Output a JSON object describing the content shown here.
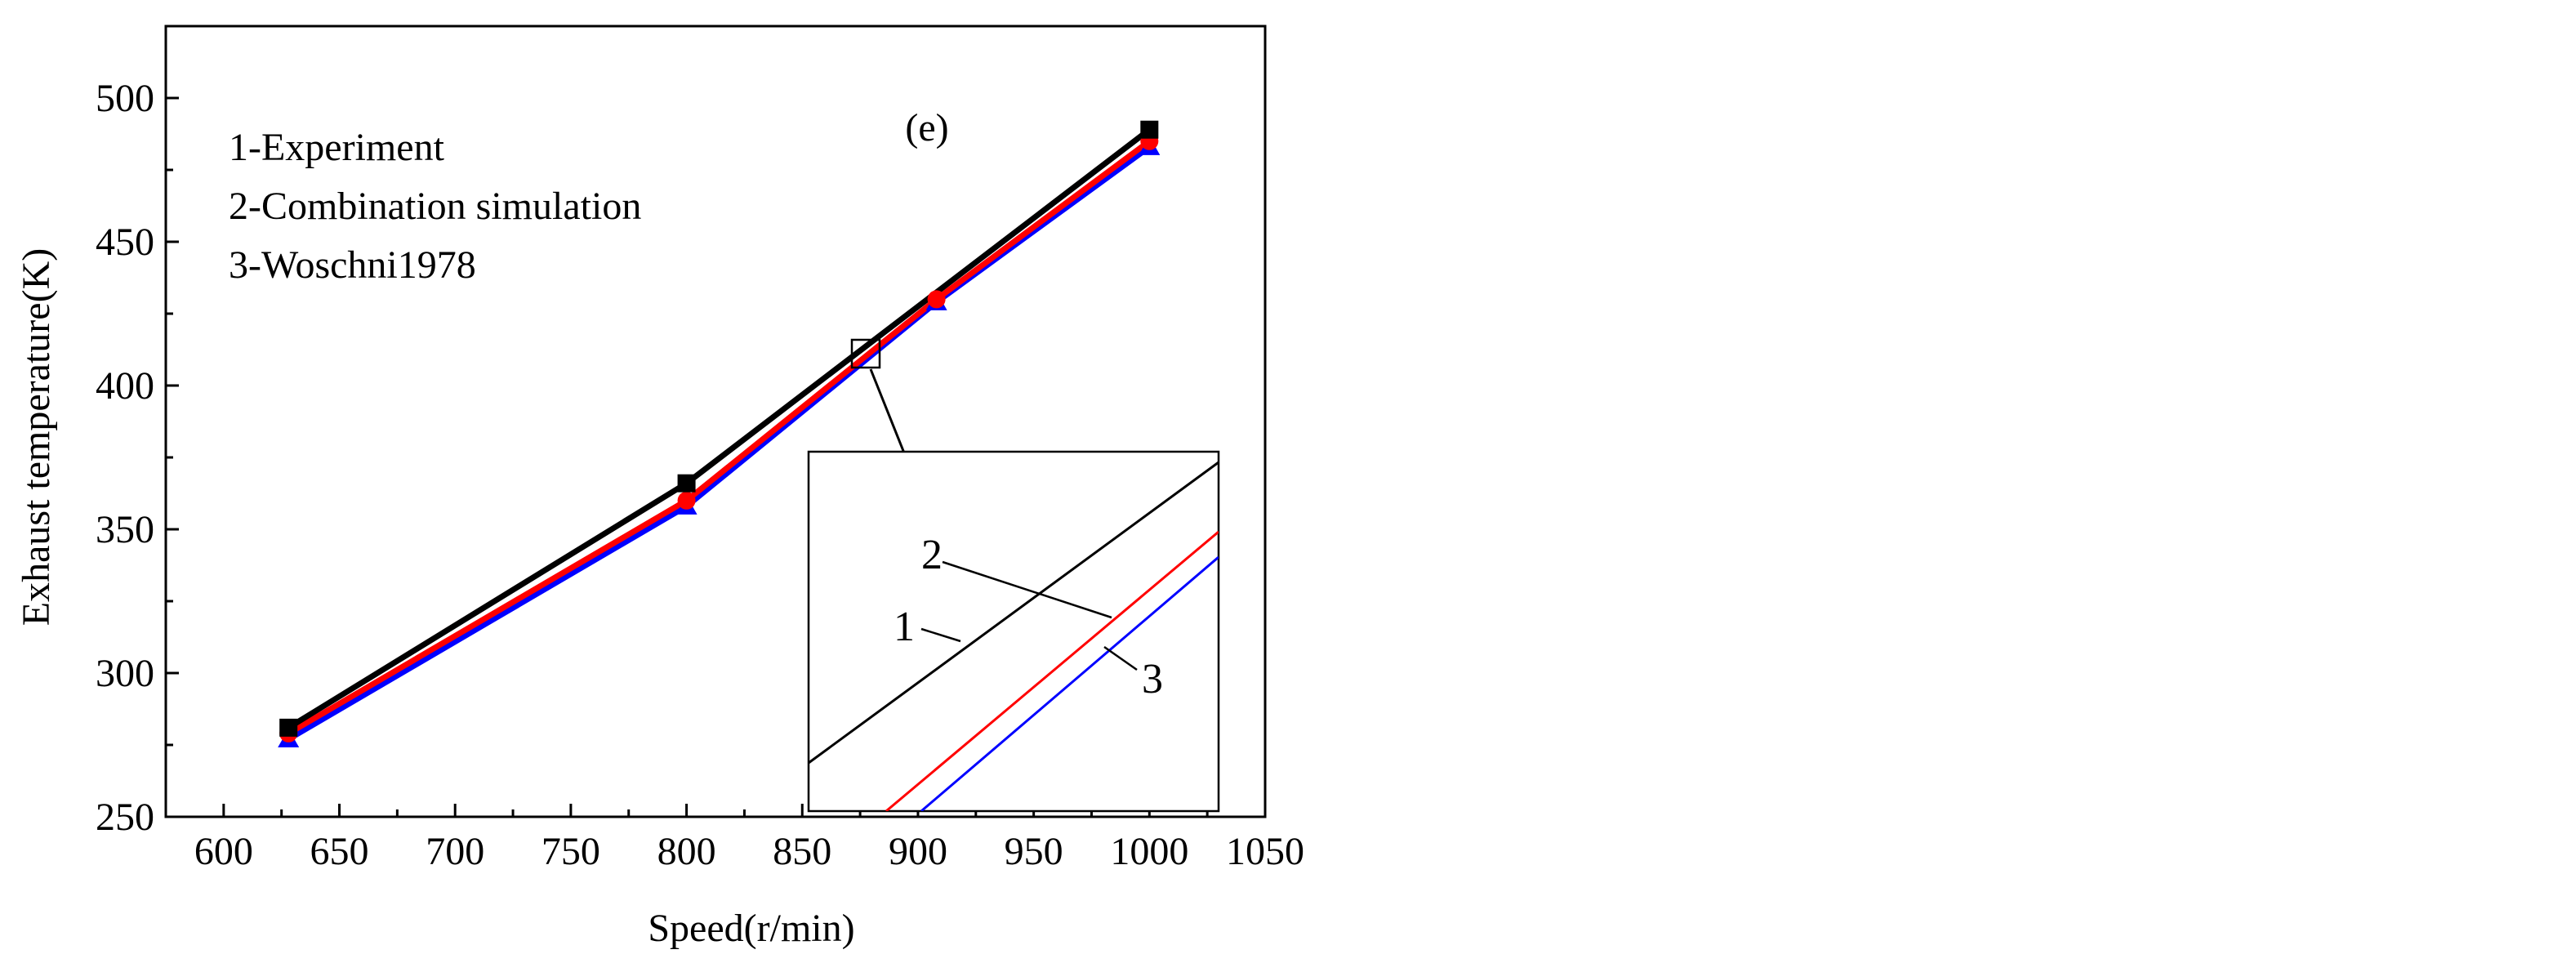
{
  "chart_data": {
    "type": "line",
    "panel_label": "(e)",
    "xlabel": "Speed(r/min)",
    "ylabel": "Exhaust temperature(K)",
    "xlim": [
      575,
      1050
    ],
    "ylim": [
      250,
      525
    ],
    "xticks": [
      600,
      650,
      700,
      750,
      800,
      850,
      900,
      950,
      1000,
      1050
    ],
    "yticks": [
      250,
      300,
      350,
      400,
      450,
      500
    ],
    "legend": [
      "1-Experiment",
      "2-Combination simulation",
      "3-Woschni1978"
    ],
    "series": [
      {
        "id": "1",
        "name": "Experiment",
        "color": "#000000",
        "marker": "square",
        "x": [
          628,
          800,
          1000
        ],
        "y": [
          281,
          366,
          489
        ]
      },
      {
        "id": "2",
        "name": "Combination simulation",
        "color": "#ff0000",
        "marker": "circle",
        "x": [
          628,
          800,
          908,
          1000
        ],
        "y": [
          279,
          360,
          430,
          485
        ]
      },
      {
        "id": "3",
        "name": "Woschni1978",
        "color": "#0000ff",
        "marker": "triangle",
        "x": [
          628,
          800,
          908,
          1000
        ],
        "y": [
          277,
          358,
          429,
          483
        ]
      }
    ],
    "zoom": {
      "center": {
        "x": 880,
        "y": 410
      },
      "labels": [
        "1",
        "2",
        "3"
      ]
    }
  }
}
